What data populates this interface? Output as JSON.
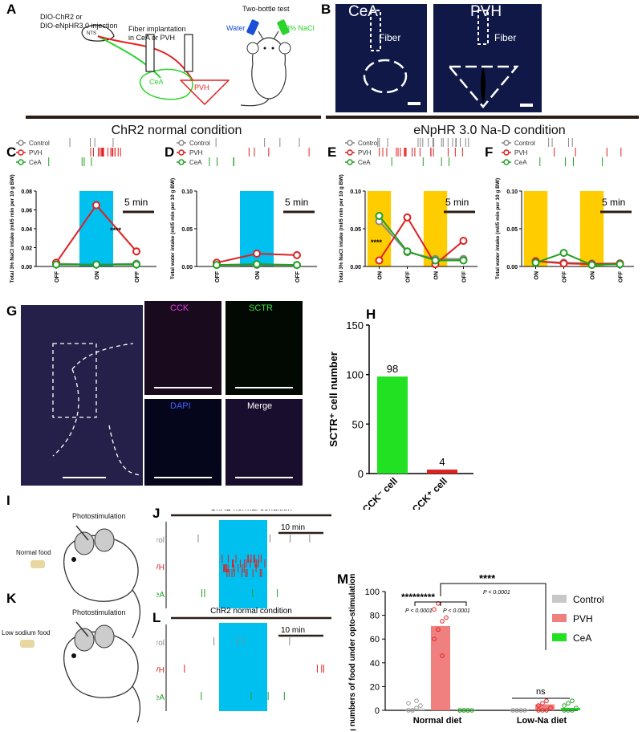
{
  "panel_letters": [
    "A",
    "B",
    "C",
    "D",
    "E",
    "F",
    "G",
    "H",
    "I",
    "J",
    "K",
    "L",
    "M"
  ],
  "panelA": {
    "injection": [
      "DIO-ChR2 or",
      "DIO-eNpHR3.0 injection"
    ],
    "nts": "NTS",
    "fiber": [
      "Fiber implantation",
      "in CeA or PVH"
    ],
    "cea": "CeA",
    "pvh": "PVH",
    "test_title": "Two-bottle test",
    "water": "Water",
    "nacl": "3% NaCl"
  },
  "panelB": {
    "left_title": "CeA",
    "right_title": "PVH",
    "fiber": "Fiber"
  },
  "sections": {
    "left": "ChR2 normal condition",
    "right": "eNpHR 3.0 Na-D condition"
  },
  "legend": {
    "control": "Control",
    "pvh": "PVH",
    "cea": "CeA"
  },
  "colors": {
    "control": "#888888",
    "pvh": "#e02020",
    "cea": "#20a020",
    "blue_stim": "#00c0f0",
    "yellow_stim": "#ffcc00",
    "cck": "#e040e0",
    "sctr": "#40e040",
    "dapi": "#4040ff"
  },
  "scale_5min": "5 min",
  "scale_10min": "10 min",
  "stars_C": "****",
  "stars_E": "****",
  "panelG": {
    "cck": "CCK",
    "sctr": "SCTR",
    "dapi": "DAPI",
    "merge": "Merge"
  },
  "panelI": {
    "photostim": "Photostimulation",
    "food": "Normal food"
  },
  "panelK": {
    "photostim": "Photostimulation",
    "food": "Low sodium food"
  },
  "panelJ_title": "ChR2 normal condition",
  "panelL_title": "ChR2 normal condition",
  "raster_labels": [
    "Control",
    "PVH",
    "CeA"
  ],
  "chart_data": [
    {
      "panel": "C",
      "type": "line",
      "categories": [
        "OFF",
        "ON",
        "OFF"
      ],
      "ylabel": "Total 3% NaCl intake (ml/5 min per 10 g BW)",
      "ylim": [
        0,
        0.08
      ],
      "yticks": [
        "0.00",
        "0.02",
        "0.04",
        "0.06",
        "0.08"
      ],
      "series": [
        {
          "name": "Control",
          "values": [
            0.003,
            0.002,
            0.003
          ]
        },
        {
          "name": "PVH",
          "values": [
            0.004,
            0.065,
            0.016
          ]
        },
        {
          "name": "CeA",
          "values": [
            0.002,
            0.002,
            0.002
          ]
        }
      ]
    },
    {
      "panel": "D",
      "type": "line",
      "categories": [
        "OFF",
        "ON",
        "OFF"
      ],
      "ylabel": "Total water intake (ml/5 min per 10 g BW)",
      "ylim": [
        0,
        0.1
      ],
      "yticks": [
        "0.00",
        "0.05",
        "0.10"
      ],
      "series": [
        {
          "name": "Control",
          "values": [
            0.002,
            0.002,
            0.002
          ]
        },
        {
          "name": "PVH",
          "values": [
            0.005,
            0.017,
            0.015
          ]
        },
        {
          "name": "CeA",
          "values": [
            0.002,
            0.003,
            0.002
          ]
        }
      ]
    },
    {
      "panel": "E",
      "type": "line",
      "categories": [
        "ON",
        "OFF",
        "ON",
        "OFF"
      ],
      "ylabel": "Total 3% NaCl intake (ml/5 min per 10 g BW)",
      "ylim": [
        0,
        0.1
      ],
      "yticks": [
        "0.00",
        "0.05",
        "0.10"
      ],
      "series": [
        {
          "name": "Control",
          "values": [
            0.06,
            0.019,
            0.01,
            0.01
          ]
        },
        {
          "name": "PVH",
          "values": [
            0.008,
            0.065,
            0.003,
            0.034
          ]
        },
        {
          "name": "CeA",
          "values": [
            0.067,
            0.02,
            0.008,
            0.008
          ]
        }
      ]
    },
    {
      "panel": "F",
      "type": "line",
      "categories": [
        "ON",
        "OFF",
        "ON",
        "OFF"
      ],
      "ylabel": "Total water intake (ml/5 min per 10 g BW)",
      "ylim": [
        0,
        0.1
      ],
      "yticks": [
        "0.00",
        "0.05",
        "0.10"
      ],
      "series": [
        {
          "name": "Control",
          "values": [
            0.007,
            0.005,
            0.004,
            0.004
          ]
        },
        {
          "name": "PVH",
          "values": [
            0.007,
            0.004,
            0.003,
            0.004
          ]
        },
        {
          "name": "CeA",
          "values": [
            0.005,
            0.018,
            0.002,
            0.003
          ]
        }
      ]
    },
    {
      "panel": "H",
      "type": "bar",
      "categories": [
        "CCK⁻ cell",
        "CCK⁺ cell"
      ],
      "values": [
        98,
        4
      ],
      "data_labels": [
        "98",
        "4"
      ],
      "ylabel": "SCTR⁺ cell number",
      "ylim": [
        0,
        150
      ],
      "yticks": [
        "0",
        "50",
        "100",
        "150"
      ]
    },
    {
      "panel": "M",
      "type": "bar",
      "groups": [
        "Normal diet",
        "Low-Na diet"
      ],
      "series": [
        {
          "name": "Control",
          "values": [
            1.5,
            0.2
          ]
        },
        {
          "name": "PVH",
          "values": [
            71,
            5
          ]
        },
        {
          "name": "CeA",
          "values": [
            0.2,
            2
          ]
        }
      ],
      "ylabel": "Licking numbers of food under opto-stimulation (times)",
      "ylim": [
        0,
        100
      ],
      "yticks": [
        "0",
        "20",
        "40",
        "60",
        "80",
        "100"
      ],
      "annotations": [
        "*********",
        "****",
        "P < 0.0001",
        "P < 0.0001",
        "P < 0.0001",
        "ns"
      ]
    }
  ]
}
